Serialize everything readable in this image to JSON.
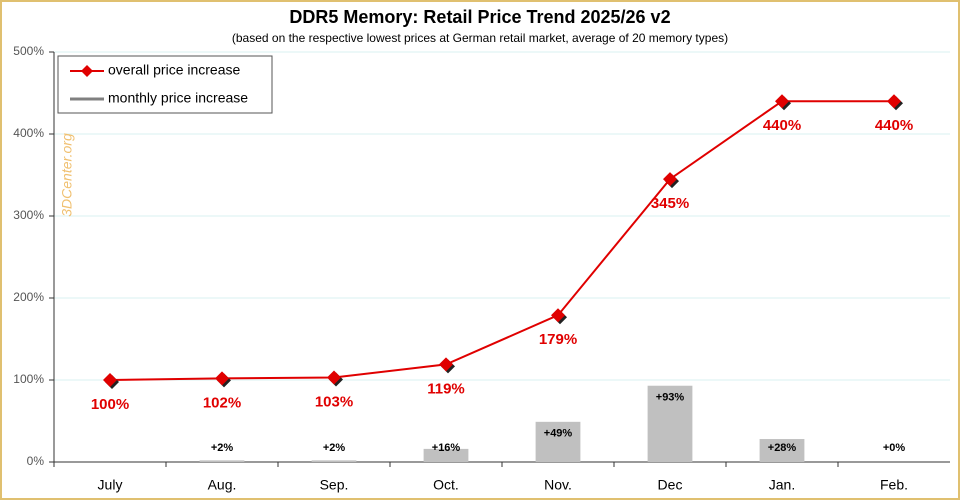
{
  "chart_data": {
    "type": "line-bar",
    "title": "DDR5 Memory: Retail Price Trend 2025/26 v2",
    "subtitle": "(based on the respective lowest prices at German retail market, average of 20 memory types)",
    "watermark": "3DCenter.org",
    "categories": [
      "July",
      "Aug.",
      "Sep.",
      "Oct.",
      "Nov.",
      "Dec",
      "Jan.",
      "Feb."
    ],
    "series": [
      {
        "name": "overall price increase",
        "type": "line",
        "color": "#e00000",
        "values": [
          100,
          102,
          103,
          119,
          179,
          345,
          440,
          440
        ],
        "value_labels": [
          "100%",
          "102%",
          "103%",
          "119%",
          "179%",
          "345%",
          "440%",
          "440%"
        ]
      },
      {
        "name": "monthly price increase",
        "type": "bar",
        "color": "#c0c0c0",
        "values": [
          null,
          2,
          2,
          16,
          49,
          93,
          28,
          0
        ],
        "value_labels": [
          null,
          "+2%",
          "+2%",
          "+16%",
          "+49%",
          "+93%",
          "+28%",
          "+0%"
        ]
      }
    ],
    "ylim": [
      0,
      500
    ],
    "yticks": [
      {
        "value": 0,
        "label": "0%"
      },
      {
        "value": 100,
        "label": "100%"
      },
      {
        "value": 200,
        "label": "200%"
      },
      {
        "value": 300,
        "label": "300%"
      },
      {
        "value": 400,
        "label": "400%"
      },
      {
        "value": 500,
        "label": "500%"
      }
    ],
    "grid": true,
    "legend": "top-left"
  }
}
